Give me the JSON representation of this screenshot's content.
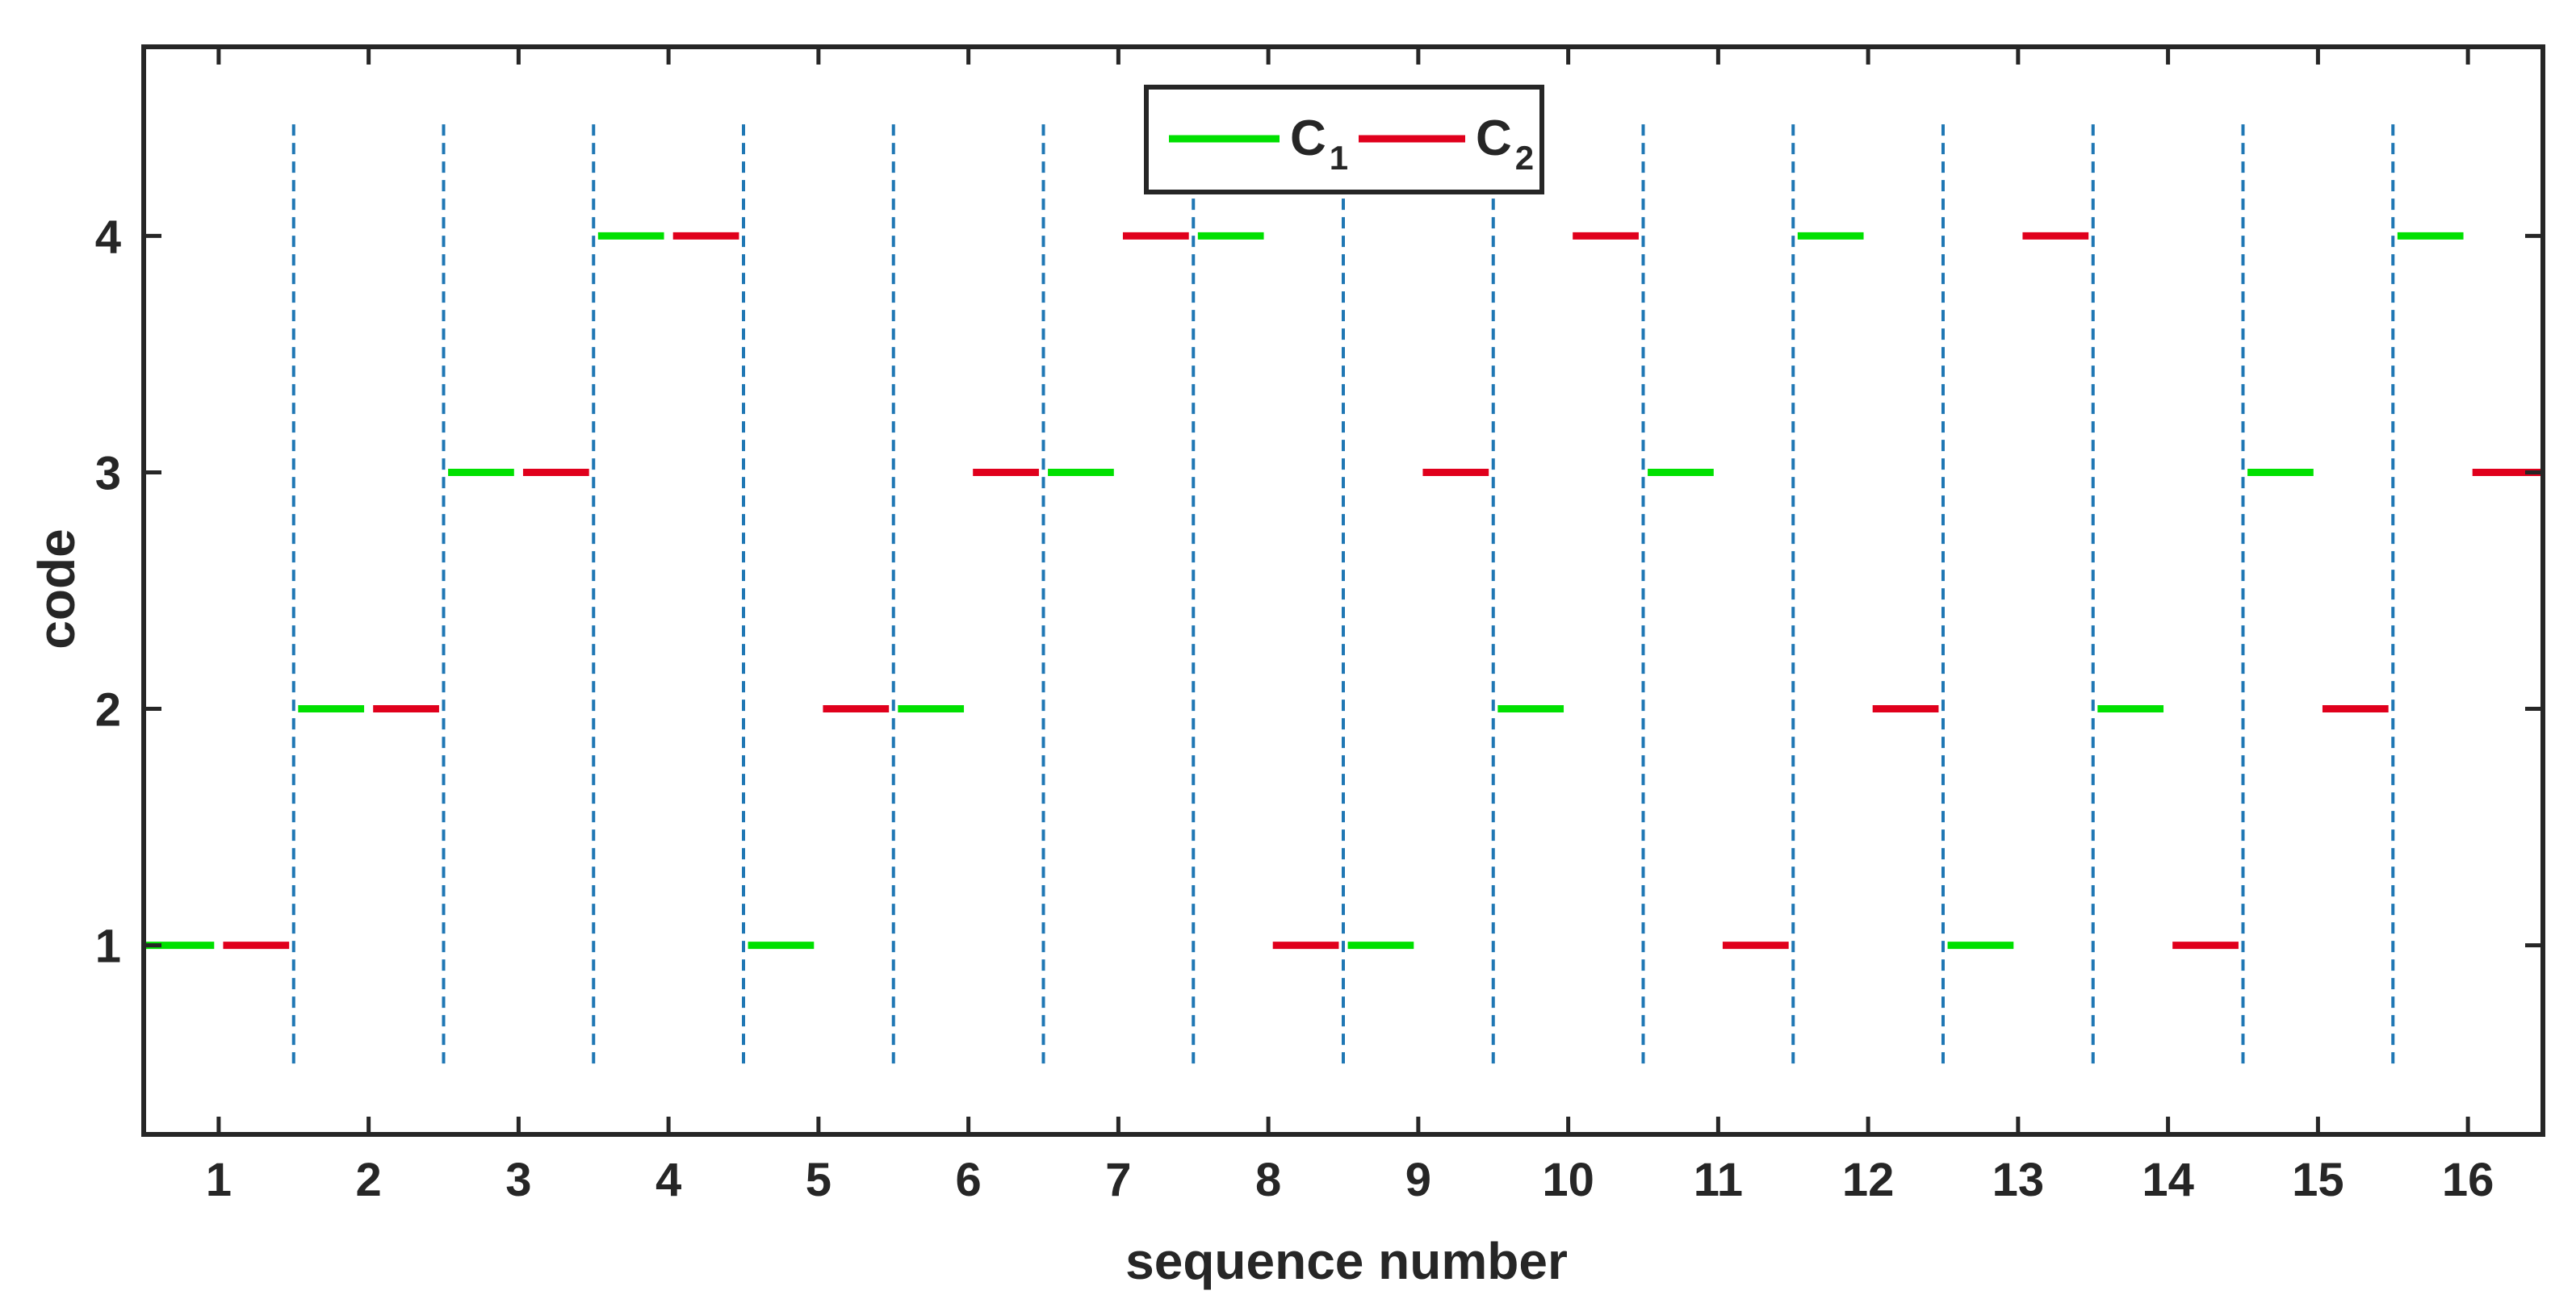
{
  "chart_data": {
    "type": "line",
    "title": "",
    "xlabel": "sequence number",
    "ylabel": "code",
    "xlim": [
      0.5,
      16.5
    ],
    "ylim": [
      0.2,
      4.8
    ],
    "xticks": [
      1,
      2,
      3,
      4,
      5,
      6,
      7,
      8,
      9,
      10,
      11,
      12,
      13,
      14,
      15,
      16
    ],
    "yticks": [
      1,
      2,
      3,
      4
    ],
    "dividers": [
      1.5,
      2.5,
      3.5,
      4.5,
      5.5,
      6.5,
      7.5,
      8.5,
      9.5,
      10.5,
      11.5,
      12.5,
      13.5,
      14.5,
      15.5
    ],
    "divider_y_range": [
      0.5,
      4.5
    ],
    "legend_position": "top-center",
    "series": [
      {
        "name": "C",
        "name_subscript": "1",
        "color": "#00e000",
        "segments": [
          {
            "x": [
              0.5,
              0.97
            ],
            "y": 1
          },
          {
            "x": [
              1.53,
              1.97
            ],
            "y": 2
          },
          {
            "x": [
              2.53,
              2.97
            ],
            "y": 3
          },
          {
            "x": [
              3.53,
              3.97
            ],
            "y": 4
          },
          {
            "x": [
              4.53,
              4.97
            ],
            "y": 1
          },
          {
            "x": [
              5.53,
              5.97
            ],
            "y": 2
          },
          {
            "x": [
              6.53,
              6.97
            ],
            "y": 3
          },
          {
            "x": [
              7.53,
              7.97
            ],
            "y": 4
          },
          {
            "x": [
              8.53,
              8.97
            ],
            "y": 1
          },
          {
            "x": [
              9.53,
              9.97
            ],
            "y": 2
          },
          {
            "x": [
              10.53,
              10.97
            ],
            "y": 3
          },
          {
            "x": [
              11.53,
              11.97
            ],
            "y": 4
          },
          {
            "x": [
              12.53,
              12.97
            ],
            "y": 1
          },
          {
            "x": [
              13.53,
              13.97
            ],
            "y": 2
          },
          {
            "x": [
              14.53,
              14.97
            ],
            "y": 3
          },
          {
            "x": [
              15.53,
              15.97
            ],
            "y": 4
          }
        ]
      },
      {
        "name": "C",
        "name_subscript": "2",
        "color": "#e0001c",
        "segments": [
          {
            "x": [
              1.03,
              1.47
            ],
            "y": 1
          },
          {
            "x": [
              2.03,
              2.47
            ],
            "y": 2
          },
          {
            "x": [
              3.03,
              3.47
            ],
            "y": 3
          },
          {
            "x": [
              4.03,
              4.47
            ],
            "y": 4
          },
          {
            "x": [
              5.03,
              5.47
            ],
            "y": 2
          },
          {
            "x": [
              6.03,
              6.47
            ],
            "y": 3
          },
          {
            "x": [
              7.03,
              7.47
            ],
            "y": 4
          },
          {
            "x": [
              8.03,
              8.47
            ],
            "y": 1
          },
          {
            "x": [
              9.03,
              9.47
            ],
            "y": 3
          },
          {
            "x": [
              10.03,
              10.47
            ],
            "y": 4
          },
          {
            "x": [
              11.03,
              11.47
            ],
            "y": 1
          },
          {
            "x": [
              12.03,
              12.47
            ],
            "y": 2
          },
          {
            "x": [
              13.03,
              13.47
            ],
            "y": 4
          },
          {
            "x": [
              14.03,
              14.47
            ],
            "y": 1
          },
          {
            "x": [
              15.03,
              15.47
            ],
            "y": 2
          },
          {
            "x": [
              16.03,
              16.5
            ],
            "y": 3
          }
        ]
      }
    ]
  }
}
